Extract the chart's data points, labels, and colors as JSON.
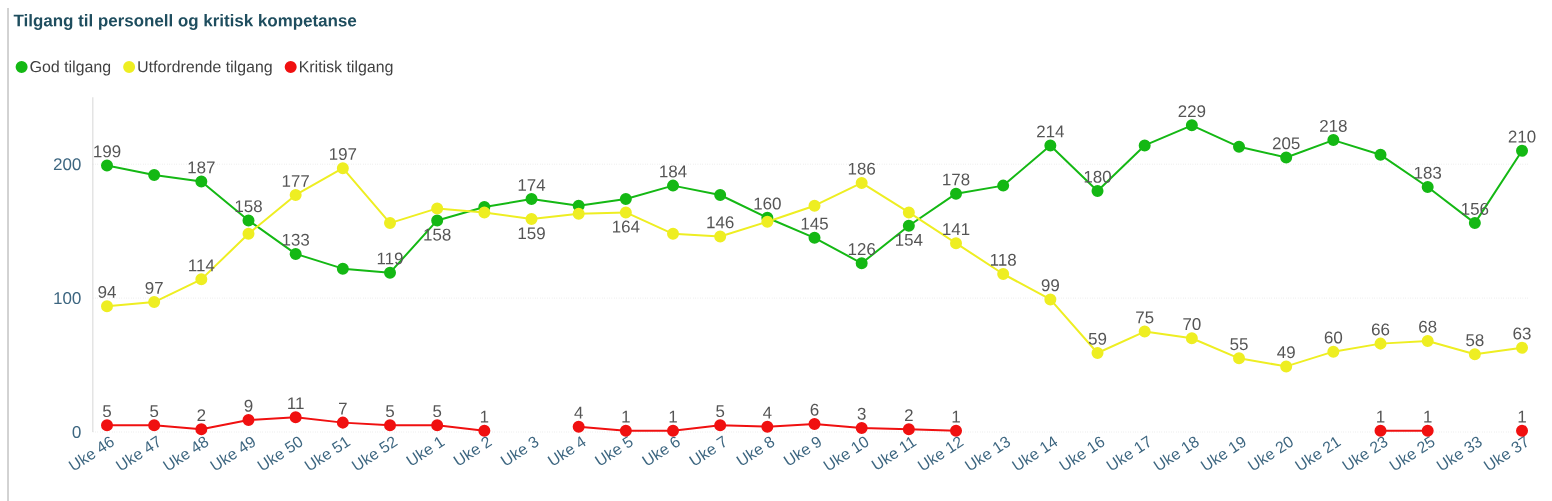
{
  "chart_data": {
    "type": "line",
    "title": "Tilgang til personell og kritisk kompetanse",
    "categories": [
      "Uke 46",
      "Uke 47",
      "Uke 48",
      "Uke 49",
      "Uke 50",
      "Uke 51",
      "Uke 52",
      "Uke 1",
      "Uke 2",
      "Uke 3",
      "Uke 4",
      "Uke 5",
      "Uke 6",
      "Uke 7",
      "Uke 8",
      "Uke 9",
      "Uke 10",
      "Uke 11",
      "Uke 12",
      "Uke 13",
      "Uke 14",
      "Uke 16",
      "Uke 17",
      "Uke 18",
      "Uke 19",
      "Uke 20",
      "Uke 21",
      "Uke 23",
      "Uke 25",
      "Uke 33",
      "Uke 37"
    ],
    "series": [
      {
        "name": "God tilgang",
        "color": "#14b814",
        "values": [
          199,
          192,
          187,
          158,
          133,
          122,
          119,
          158,
          168,
          174,
          169,
          174,
          184,
          177,
          160,
          145,
          126,
          154,
          178,
          184,
          214,
          180,
          214,
          229,
          213,
          205,
          218,
          207,
          183,
          156,
          210
        ],
        "value_labels": [
          "199",
          null,
          "187",
          "158",
          "133",
          null,
          "119",
          "158",
          null,
          "174",
          null,
          null,
          "184",
          null,
          "160",
          "145",
          "126",
          "154",
          "178",
          null,
          "214",
          "180",
          null,
          "229",
          null,
          "205",
          "218",
          null,
          "183",
          "156",
          "210"
        ]
      },
      {
        "name": "Utfordrende tilgang",
        "color": "#eeee22",
        "values": [
          94,
          97,
          114,
          148,
          177,
          197,
          156,
          167,
          164,
          159,
          163,
          164,
          148,
          146,
          157,
          169,
          186,
          164,
          141,
          118,
          99,
          59,
          75,
          70,
          55,
          49,
          60,
          66,
          68,
          58,
          63
        ],
        "value_labels": [
          "94",
          "97",
          "114",
          null,
          "177",
          "197",
          null,
          null,
          null,
          "159",
          null,
          "164",
          null,
          "146",
          null,
          null,
          "186",
          null,
          "141",
          "118",
          "99",
          "59",
          "75",
          "70",
          "55",
          "49",
          "60",
          "66",
          "68",
          "58",
          "63"
        ]
      },
      {
        "name": "Kritisk tilgang",
        "color": "#f01010",
        "values": [
          5,
          5,
          2,
          9,
          11,
          7,
          5,
          5,
          1,
          null,
          4,
          1,
          1,
          5,
          4,
          6,
          3,
          2,
          1,
          null,
          null,
          null,
          null,
          null,
          null,
          null,
          null,
          1,
          1,
          null,
          1
        ],
        "value_labels": [
          "5",
          "5",
          "2",
          "9",
          "11",
          "7",
          "5",
          "5",
          "1",
          null,
          "4",
          "1",
          "1",
          "5",
          "4",
          "6",
          "3",
          "2",
          "1",
          null,
          null,
          null,
          null,
          null,
          null,
          null,
          null,
          "1",
          "1",
          null,
          "1"
        ]
      }
    ],
    "ylim": [
      0,
      250
    ],
    "yticks": [
      0,
      100,
      200
    ],
    "grid": "y",
    "legend": "top left",
    "marker": "circle",
    "line_style": "solid"
  }
}
